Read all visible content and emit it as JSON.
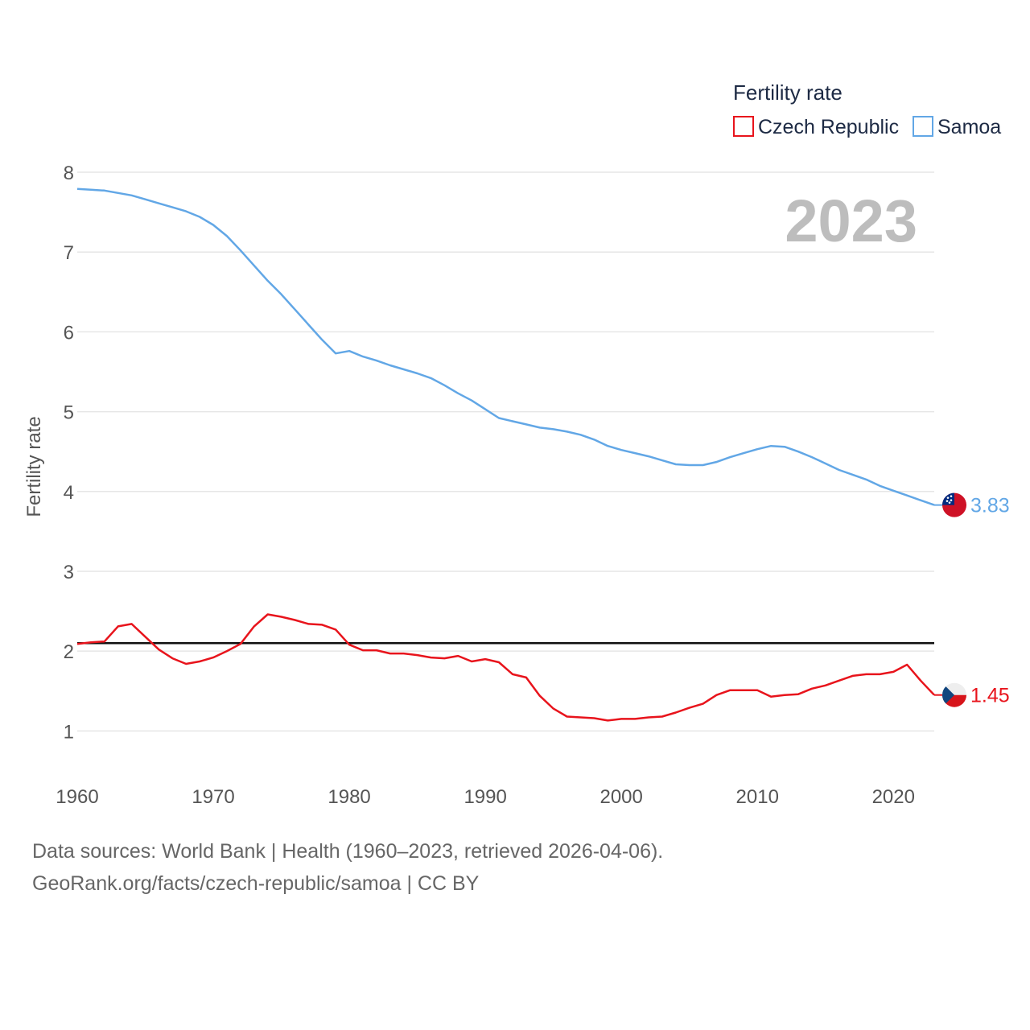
{
  "legend": {
    "title": "Fertility rate",
    "items": [
      {
        "name": "Czech Republic",
        "color": "#e8141c"
      },
      {
        "name": "Samoa",
        "color": "#62a7e6"
      }
    ]
  },
  "year_label": "2023",
  "sources": {
    "line1": "Data sources: World Bank | Health (1960–2023, retrieved 2026-04-06).",
    "line2": "GeoRank.org/facts/czech-republic/samoa | CC BY"
  },
  "chart_data": {
    "type": "line",
    "title": "Fertility rate",
    "xlabel": "",
    "ylabel": "Fertility rate",
    "xlim": [
      1960,
      2023
    ],
    "ylim": [
      0.6,
      8.0
    ],
    "xticks": [
      1960,
      1970,
      1980,
      1990,
      2000,
      2010,
      2020
    ],
    "yticks": [
      1,
      2,
      3,
      4,
      5,
      6,
      7,
      8
    ],
    "reference_line": 2.1,
    "x": [
      1960,
      1961,
      1962,
      1963,
      1964,
      1965,
      1966,
      1967,
      1968,
      1969,
      1970,
      1971,
      1972,
      1973,
      1974,
      1975,
      1976,
      1977,
      1978,
      1979,
      1980,
      1981,
      1982,
      1983,
      1984,
      1985,
      1986,
      1987,
      1988,
      1989,
      1990,
      1991,
      1992,
      1993,
      1994,
      1995,
      1996,
      1997,
      1998,
      1999,
      2000,
      2001,
      2002,
      2003,
      2004,
      2005,
      2006,
      2007,
      2008,
      2009,
      2010,
      2011,
      2012,
      2013,
      2014,
      2015,
      2016,
      2017,
      2018,
      2019,
      2020,
      2021,
      2022,
      2023
    ],
    "series": [
      {
        "name": "Czech Republic",
        "color": "#e8141c",
        "end_value": "1.45",
        "values": [
          2.09,
          2.11,
          2.12,
          2.31,
          2.34,
          2.18,
          2.02,
          1.91,
          1.84,
          1.87,
          1.92,
          2.0,
          2.09,
          2.31,
          2.46,
          2.43,
          2.39,
          2.34,
          2.33,
          2.27,
          2.08,
          2.01,
          2.01,
          1.97,
          1.97,
          1.95,
          1.92,
          1.91,
          1.94,
          1.87,
          1.9,
          1.86,
          1.71,
          1.67,
          1.44,
          1.28,
          1.18,
          1.17,
          1.16,
          1.13,
          1.15,
          1.15,
          1.17,
          1.18,
          1.23,
          1.29,
          1.34,
          1.45,
          1.51,
          1.51,
          1.51,
          1.43,
          1.45,
          1.46,
          1.53,
          1.57,
          1.63,
          1.69,
          1.71,
          1.71,
          1.74,
          1.83,
          1.63,
          1.45
        ]
      },
      {
        "name": "Samoa",
        "color": "#62a7e6",
        "end_value": "3.83",
        "values": [
          7.79,
          7.78,
          7.77,
          7.74,
          7.71,
          7.66,
          7.61,
          7.56,
          7.51,
          7.44,
          7.34,
          7.2,
          7.02,
          6.83,
          6.64,
          6.47,
          6.28,
          6.09,
          5.9,
          5.73,
          5.76,
          5.69,
          5.64,
          5.58,
          5.53,
          5.48,
          5.42,
          5.33,
          5.23,
          5.14,
          5.03,
          4.92,
          4.88,
          4.84,
          4.8,
          4.78,
          4.75,
          4.71,
          4.65,
          4.57,
          4.52,
          4.48,
          4.44,
          4.39,
          4.34,
          4.33,
          4.33,
          4.37,
          4.43,
          4.48,
          4.53,
          4.57,
          4.56,
          4.5,
          4.43,
          4.35,
          4.27,
          4.21,
          4.15,
          4.07,
          4.01,
          3.95,
          3.89,
          3.83
        ]
      }
    ]
  }
}
